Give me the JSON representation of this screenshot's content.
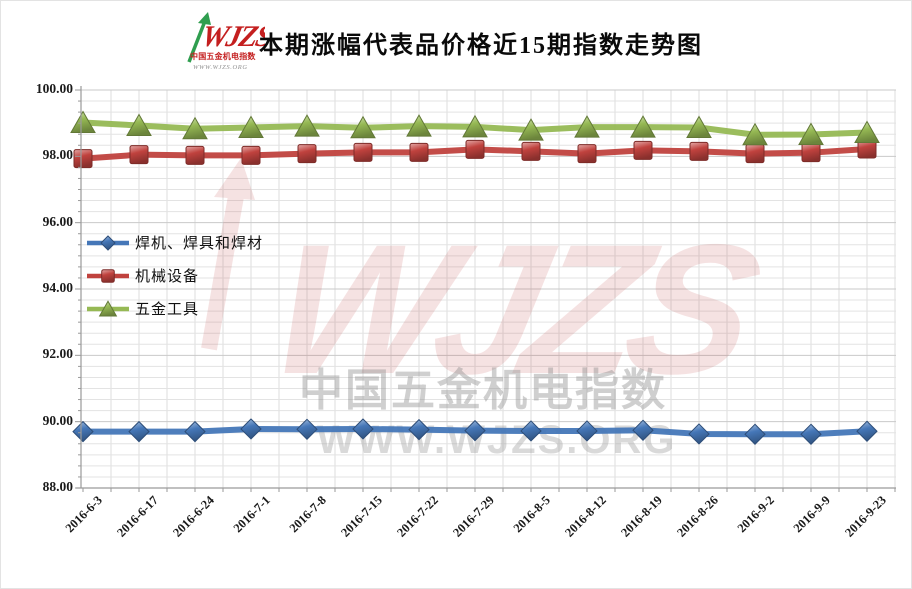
{
  "header": {
    "title": "本期涨幅代表品价格近15期指数走势图",
    "logo": {
      "brand": "WJZS",
      "subtitle": "中国五金机电指数",
      "url": "WWW.WJZS.ORG"
    }
  },
  "watermark": {
    "brand": "WJZS",
    "line1": "中国五金机电指数",
    "line2": "WWW.WJZS.ORG"
  },
  "chart_data": {
    "type": "line",
    "title": "本期涨幅代表品价格近15期指数走势图",
    "categories": [
      "2016-6-3",
      "2016-6-17",
      "2016-6-24",
      "2016-7-1",
      "2016-7-8",
      "2016-7-15",
      "2016-7-22",
      "2016-7-29",
      "2016-8-5",
      "2016-8-12",
      "2016-8-19",
      "2016-8-26",
      "2016-9-2",
      "2016-9-9",
      "2016-9-23"
    ],
    "series": [
      {
        "id": "welding",
        "name": "焊机、焊具和焊材",
        "color": "#4577b8",
        "marker": "diamond",
        "values": [
          89.7,
          89.7,
          89.7,
          89.78,
          89.77,
          89.78,
          89.76,
          89.73,
          89.72,
          89.72,
          89.74,
          89.63,
          89.62,
          89.62,
          89.71
        ]
      },
      {
        "id": "machinery",
        "name": "机械设备",
        "color": "#c0423e",
        "marker": "square",
        "values": [
          97.93,
          98.05,
          98.03,
          98.03,
          98.08,
          98.12,
          98.12,
          98.21,
          98.15,
          98.08,
          98.18,
          98.15,
          98.08,
          98.11,
          98.22
        ]
      },
      {
        "id": "hardware-tools",
        "name": "五金工具",
        "color": "#96b954",
        "marker": "triangle",
        "values": [
          99.02,
          98.93,
          98.83,
          98.87,
          98.91,
          98.86,
          98.91,
          98.89,
          98.79,
          98.88,
          98.88,
          98.87,
          98.65,
          98.66,
          98.72
        ]
      }
    ],
    "ylim": [
      88,
      100
    ],
    "ytick_step": 2,
    "y_ticks": [
      "88.00",
      "90.00",
      "92.00",
      "94.00",
      "96.00",
      "98.00",
      "100.00"
    ],
    "grid": true,
    "legend_position": "middle-left"
  }
}
